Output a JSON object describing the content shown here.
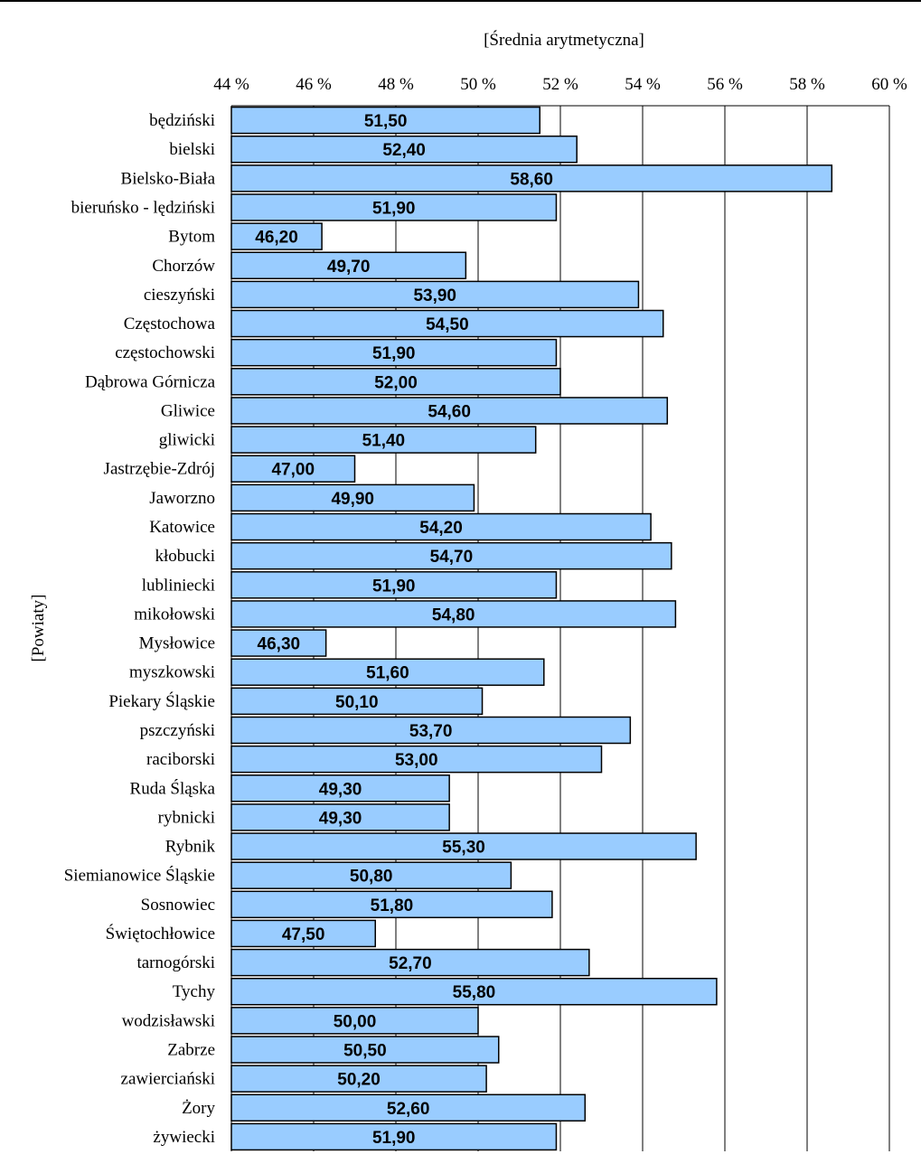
{
  "chart_data": {
    "type": "bar",
    "orientation": "horizontal",
    "xlabel": "[Średnia arytmetyczna]",
    "ylabel": "[Powiaty]",
    "xlim": [
      44,
      60
    ],
    "xticks": [
      "44 %",
      "46 %",
      "48 %",
      "50 %",
      "52 %",
      "54 %",
      "56 %",
      "58 %",
      "60 %"
    ],
    "grid": true,
    "bar_color": "#99ccff",
    "categories": [
      "będziński",
      "bielski",
      "Bielsko-Biała",
      "bieruńsko - lędziński",
      "Bytom",
      "Chorzów",
      "cieszyński",
      "Częstochowa",
      "częstochowski",
      "Dąbrowa Górnicza",
      "Gliwice",
      "gliwicki",
      "Jastrzębie-Zdrój",
      "Jaworzno",
      "Katowice",
      "kłobucki",
      "lubliniecki",
      "mikołowski",
      "Mysłowice",
      "myszkowski",
      "Piekary Śląskie",
      "pszczyński",
      "raciborski",
      "Ruda Śląska",
      "rybnicki",
      "Rybnik",
      "Siemianowice Śląskie",
      "Sosnowiec",
      "Świętochłowice",
      "tarnogórski",
      "Tychy",
      "wodzisławski",
      "Zabrze",
      "zawierciański",
      "Żory",
      "żywiecki"
    ],
    "values": [
      51.5,
      52.4,
      58.6,
      51.9,
      46.2,
      49.7,
      53.9,
      54.5,
      51.9,
      52.0,
      54.6,
      51.4,
      47.0,
      49.9,
      54.2,
      54.7,
      51.9,
      54.8,
      46.3,
      51.6,
      50.1,
      53.7,
      53.0,
      49.3,
      49.3,
      55.3,
      50.8,
      51.8,
      47.5,
      52.7,
      55.8,
      50.0,
      50.5,
      50.2,
      52.6,
      51.9
    ],
    "value_labels": [
      "51,50",
      "52,40",
      "58,60",
      "51,90",
      "46,20",
      "49,70",
      "53,90",
      "54,50",
      "51,90",
      "52,00",
      "54,60",
      "51,40",
      "47,00",
      "49,90",
      "54,20",
      "54,70",
      "51,90",
      "54,80",
      "46,30",
      "51,60",
      "50,10",
      "53,70",
      "53,00",
      "49,30",
      "49,30",
      "55,30",
      "50,80",
      "51,80",
      "47,50",
      "52,70",
      "55,80",
      "50,00",
      "50,50",
      "50,20",
      "52,60",
      "51,90"
    ]
  }
}
